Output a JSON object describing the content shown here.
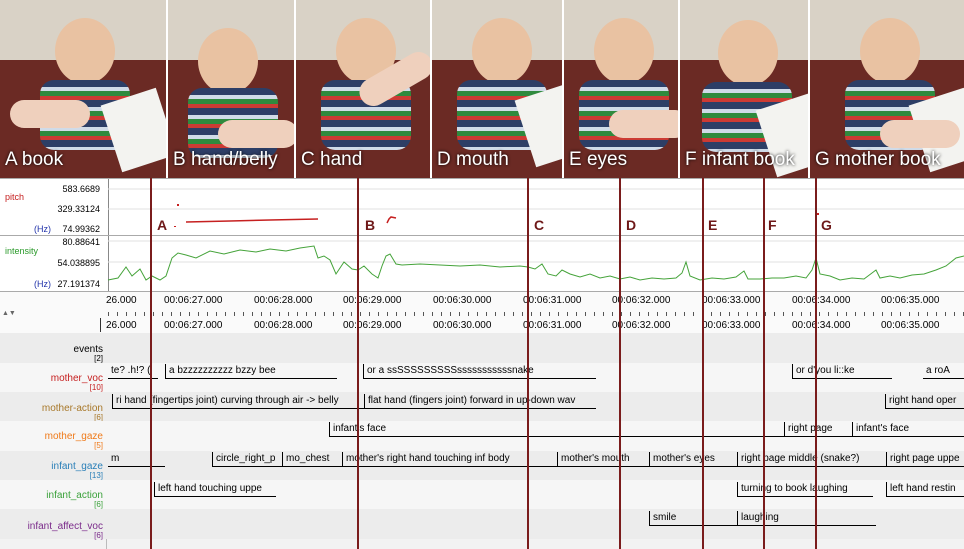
{
  "photos": [
    {
      "label": "A book"
    },
    {
      "label": "B hand/belly"
    },
    {
      "label": "C hand"
    },
    {
      "label": "D mouth"
    },
    {
      "label": "E  eyes"
    },
    {
      "label": "F infant book"
    },
    {
      "label": "G mother book"
    }
  ],
  "pitch": {
    "label": "pitch",
    "unit": "(Hz)",
    "ticks": [
      "583.6689",
      "329.33124",
      "74.99362"
    ]
  },
  "intensity": {
    "label": "intensity",
    "unit": "(Hz)",
    "ticks": [
      "80.88641",
      "54.038895",
      "27.191374"
    ]
  },
  "time_ticks": [
    "26.000",
    "00:06:27.000",
    "00:06:28.000",
    "00:06:29.000",
    "00:06:30.000",
    "00:06:31.000",
    "00:06:32.000",
    "00:06:33.000",
    "00:06:34.000",
    "00:06:35.000"
  ],
  "markers": [
    "A",
    "B",
    "C",
    "D",
    "E",
    "F",
    "G"
  ],
  "tiers": [
    {
      "name": "events",
      "count": "[2]",
      "color": "#000000",
      "annotations": []
    },
    {
      "name": "mother_voc",
      "count": "[10]",
      "color": "#c62020",
      "annotations": [
        "te? .h!? (",
        "a    bzzzzzzzzzz       bzzy bee",
        "or  a  ssSSSSSSSSSsssssssssssnake",
        "or   d'you li::ke",
        "a    roA"
      ]
    },
    {
      "name": "mother-action",
      "count": "[6]",
      "color": "#a8782a",
      "annotations": [
        "ri hand (fingertips joint) curving through air -> belly",
        "flat hand (fingers joint) forward in up-down wav",
        "right hand oper"
      ]
    },
    {
      "name": "mother_gaze",
      "count": "[5]",
      "color": "#ef7a1a",
      "annotations": [
        "infant's face",
        "right page",
        "infant's face"
      ]
    },
    {
      "name": "infant_gaze",
      "count": "[13]",
      "color": "#2a7fb8",
      "annotations": [
        "m",
        "circle_right_p",
        "mo_chest",
        "mother's right hand touching inf body",
        "mother's mouth",
        "mother's eyes",
        "right page middle (snake?)",
        "right page uppe"
      ]
    },
    {
      "name": "infant_action",
      "count": "[6]",
      "color": "#3aa13a",
      "annotations": [
        "left hand touching uppe",
        "turning to book laughing",
        "left hand restin"
      ]
    },
    {
      "name": "infant_affect_voc",
      "count": "[6]",
      "color": "#7a2a8a",
      "annotations": [
        "smile",
        "laughing"
      ]
    }
  ]
}
